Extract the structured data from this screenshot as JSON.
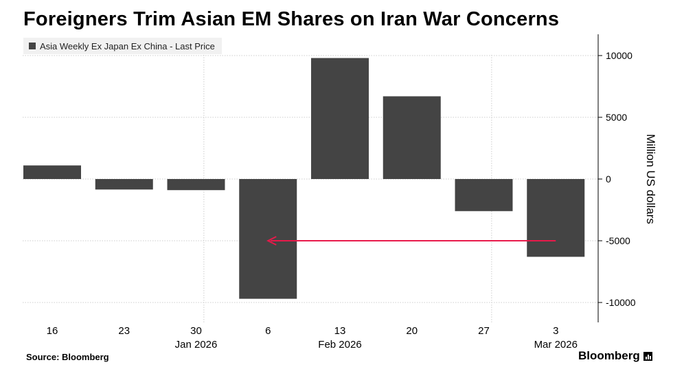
{
  "title": "Foreigners Trim Asian EM Shares on Iran War Concerns",
  "legend_label": "Asia Weekly Ex Japan Ex China - Last Price",
  "source_text": "Source: Bloomberg",
  "brand": "Bloomberg",
  "colors": {
    "bar": "#444444",
    "arrow": "#e8194a",
    "grid": "#cccccc"
  },
  "chart_data": {
    "type": "bar",
    "title": "Foreigners Trim Asian EM Shares on Iran War Concerns",
    "ylabel": "Million US dollars",
    "ylim": [
      -11500,
      11500
    ],
    "yticks": [
      10000,
      5000,
      0,
      -5000,
      -10000
    ],
    "ytick_labels": [
      "10000",
      "5000",
      "0",
      "-5000",
      "-10000"
    ],
    "categories": [
      "16",
      "23",
      "30",
      "6",
      "13",
      "20",
      "27",
      "3"
    ],
    "month_labels": [
      {
        "label": "Jan 2026",
        "under_index": 2
      },
      {
        "label": "Feb 2026",
        "under_index": 4
      },
      {
        "label": "Mar 2026",
        "under_index": 7
      }
    ],
    "series": [
      {
        "name": "Asia Weekly Ex Japan Ex China - Last Price",
        "values": [
          1100,
          -850,
          -900,
          -9700,
          9800,
          6700,
          -2600,
          -6300
        ]
      }
    ],
    "annotation": {
      "type": "arrow",
      "from_index": 7,
      "to_index": 3,
      "y": -5000
    }
  }
}
